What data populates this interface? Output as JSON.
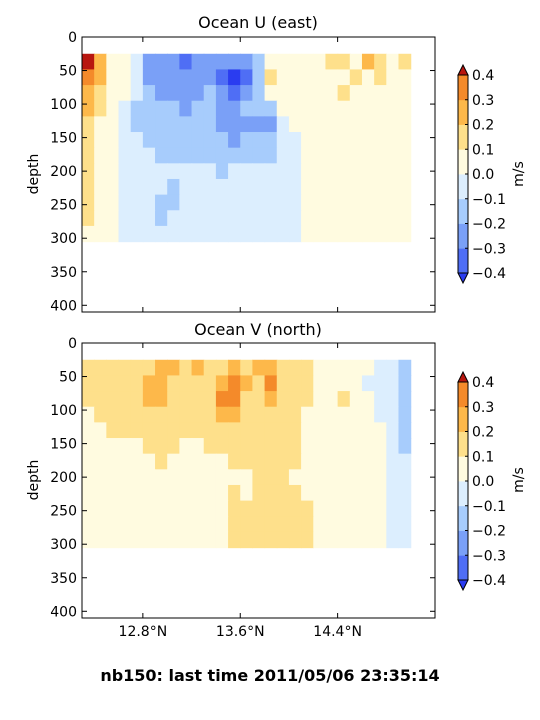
{
  "figure": {
    "suptitle": "nb150: last time 2011/05/06 23:35:14"
  },
  "chart_data": [
    {
      "type": "heatmap",
      "title": "Ocean U (east)",
      "ylabel": "depth",
      "xlabel": "",
      "yticks": [
        0,
        50,
        100,
        150,
        200,
        250,
        300,
        350,
        400
      ],
      "ylim": [
        410,
        0
      ],
      "y_inverted": true,
      "xlim": [
        12.3,
        15.2
      ],
      "xticks": [
        12.8,
        13.6,
        14.4
      ],
      "xtick_labels_visible": false,
      "data_depth_range": [
        25,
        305
      ],
      "colorbar": {
        "label": "m/s",
        "ticks": [
          "0.4",
          "0.3",
          "0.2",
          "0.1",
          "0.0",
          "−0.1",
          "−0.2",
          "−0.3",
          "−0.4"
        ],
        "levels": [
          -0.4,
          -0.3,
          -0.2,
          -0.1,
          0.0,
          0.1,
          0.2,
          0.3,
          0.4
        ],
        "extend": "both",
        "colors": [
          "#2a3cf0",
          "#4f6ef5",
          "#7aa0f7",
          "#a7ccfc",
          "#dceefe",
          "#fffbe0",
          "#fee08b",
          "#fdb84a",
          "#f48a2a",
          "#dd4a1a",
          "#b8160f"
        ]
      },
      "field": {
        "x": [
          12.3,
          12.4,
          12.5,
          12.6,
          12.7,
          12.8,
          12.9,
          13.0,
          13.1,
          13.2,
          13.3,
          13.4,
          13.5,
          13.6,
          13.7,
          13.8,
          13.9,
          14.0,
          14.1,
          14.2,
          14.3,
          14.4,
          14.5,
          14.6,
          14.7,
          14.8,
          14.9
        ],
        "depth": [
          25,
          50,
          75,
          100,
          125,
          150,
          175,
          200,
          225,
          250,
          275,
          300
        ],
        "values": [
          [
            0.4,
            0.25,
            0.05,
            0.02,
            -0.08,
            -0.3,
            -0.3,
            -0.25,
            -0.35,
            -0.3,
            -0.28,
            -0.3,
            -0.25,
            -0.3,
            -0.15,
            0.05,
            0.05,
            0.02,
            0.05,
            0.05,
            0.1,
            0.1,
            0.05,
            0.2,
            0.12,
            0.05,
            0.15
          ],
          [
            0.35,
            0.2,
            0.05,
            0.02,
            -0.1,
            -0.28,
            -0.25,
            -0.22,
            -0.3,
            -0.25,
            -0.22,
            -0.35,
            -0.42,
            -0.38,
            -0.15,
            0.15,
            0.05,
            0.02,
            0.05,
            0.05,
            0.05,
            0.05,
            0.1,
            0.05,
            0.1,
            0.05,
            0.05
          ],
          [
            0.25,
            0.15,
            0.05,
            0.02,
            -0.1,
            -0.2,
            -0.22,
            -0.22,
            -0.25,
            -0.22,
            -0.2,
            -0.3,
            -0.35,
            -0.3,
            -0.15,
            0.05,
            0.05,
            0.02,
            0.05,
            0.05,
            0.05,
            0.15,
            0.05,
            0.05,
            0.05,
            0.05,
            0.05
          ],
          [
            0.2,
            0.1,
            0.02,
            -0.05,
            -0.12,
            -0.18,
            -0.18,
            -0.18,
            -0.22,
            -0.18,
            -0.18,
            -0.22,
            -0.22,
            -0.2,
            -0.2,
            -0.15,
            0.02,
            0.05,
            0.02,
            0.05,
            0.05,
            0.05,
            0.05,
            0.05,
            0.05,
            0.05,
            0.05
          ],
          [
            0.15,
            0.05,
            0.02,
            -0.05,
            -0.12,
            -0.15,
            -0.15,
            -0.15,
            -0.18,
            -0.15,
            -0.15,
            -0.22,
            -0.25,
            -0.22,
            -0.22,
            -0.22,
            -0.05,
            0.02,
            0.02,
            0.05,
            0.05,
            0.05,
            0.05,
            0.05,
            0.05,
            0.05,
            0.05
          ],
          [
            0.12,
            0.05,
            0.02,
            -0.05,
            -0.1,
            -0.12,
            -0.12,
            -0.12,
            -0.15,
            -0.12,
            -0.15,
            -0.2,
            -0.22,
            -0.18,
            -0.18,
            -0.15,
            -0.05,
            -0.02,
            0.02,
            0.05,
            0.05,
            0.05,
            0.05,
            0.05,
            0.05,
            0.05,
            0.05
          ],
          [
            0.1,
            0.05,
            0.02,
            -0.05,
            -0.08,
            -0.1,
            -0.12,
            -0.12,
            -0.12,
            -0.12,
            -0.12,
            -0.15,
            -0.12,
            -0.12,
            -0.12,
            -0.12,
            -0.05,
            -0.02,
            0.02,
            0.05,
            0.05,
            0.05,
            0.05,
            0.05,
            0.05,
            0.05,
            0.05
          ],
          [
            0.1,
            0.05,
            0.02,
            -0.02,
            -0.05,
            -0.08,
            -0.1,
            -0.1,
            -0.1,
            -0.1,
            -0.1,
            -0.12,
            -0.1,
            -0.08,
            -0.08,
            -0.08,
            -0.05,
            -0.02,
            0.02,
            0.02,
            0.05,
            0.05,
            0.05,
            0.05,
            0.05,
            0.05,
            0.05
          ],
          [
            0.12,
            0.05,
            0.02,
            -0.02,
            -0.05,
            -0.05,
            -0.08,
            -0.12,
            -0.1,
            -0.08,
            -0.08,
            -0.08,
            -0.05,
            -0.05,
            -0.05,
            -0.05,
            -0.05,
            -0.02,
            0.02,
            0.02,
            0.05,
            0.05,
            0.05,
            0.05,
            0.05,
            0.05,
            0.05
          ],
          [
            0.1,
            0.05,
            0.02,
            -0.02,
            -0.02,
            -0.05,
            -0.12,
            -0.12,
            -0.05,
            -0.05,
            -0.05,
            -0.05,
            -0.05,
            -0.05,
            -0.05,
            -0.05,
            -0.02,
            -0.02,
            0.02,
            0.02,
            0.05,
            0.05,
            0.05,
            0.05,
            0.05,
            0.05,
            0.05
          ],
          [
            0.1,
            0.05,
            0.02,
            -0.02,
            -0.02,
            -0.05,
            -0.12,
            -0.05,
            -0.05,
            -0.05,
            -0.05,
            -0.05,
            -0.05,
            -0.05,
            -0.05,
            -0.05,
            -0.02,
            -0.02,
            0.02,
            0.02,
            0.02,
            0.05,
            0.05,
            0.05,
            0.05,
            0.05,
            0.05
          ],
          [
            0.05,
            0.05,
            0.02,
            -0.02,
            -0.02,
            -0.05,
            -0.05,
            -0.05,
            -0.05,
            -0.05,
            -0.05,
            -0.05,
            -0.05,
            -0.05,
            -0.05,
            -0.05,
            -0.02,
            -0.02,
            0.02,
            0.02,
            0.02,
            0.02,
            0.05,
            0.05,
            0.05,
            0.05,
            0.05
          ]
        ]
      }
    },
    {
      "type": "heatmap",
      "title": "Ocean V (north)",
      "ylabel": "depth",
      "xlabel": "",
      "yticks": [
        0,
        50,
        100,
        150,
        200,
        250,
        300,
        350,
        400
      ],
      "ylim": [
        410,
        0
      ],
      "y_inverted": true,
      "xlim": [
        12.3,
        15.2
      ],
      "xticks": [
        12.8,
        13.6,
        14.4
      ],
      "xtick_labels": [
        "12.8°N",
        "13.6°N",
        "14.4°N"
      ],
      "data_depth_range": [
        25,
        305
      ],
      "colorbar": {
        "label": "m/s",
        "ticks": [
          "0.4",
          "0.3",
          "0.2",
          "0.1",
          "0.0",
          "−0.1",
          "−0.2",
          "−0.3",
          "−0.4"
        ],
        "levels": [
          -0.4,
          -0.3,
          -0.2,
          -0.1,
          0.0,
          0.1,
          0.2,
          0.3,
          0.4
        ],
        "extend": "both",
        "colors": [
          "#2a3cf0",
          "#4f6ef5",
          "#7aa0f7",
          "#a7ccfc",
          "#dceefe",
          "#fffbe0",
          "#fee08b",
          "#fdb84a",
          "#f48a2a",
          "#dd4a1a",
          "#b8160f"
        ]
      },
      "field": {
        "x": [
          12.3,
          12.4,
          12.5,
          12.6,
          12.7,
          12.8,
          12.9,
          13.0,
          13.1,
          13.2,
          13.3,
          13.4,
          13.5,
          13.6,
          13.7,
          13.8,
          13.9,
          14.0,
          14.1,
          14.2,
          14.3,
          14.4,
          14.5,
          14.6,
          14.7,
          14.8,
          14.9
        ],
        "depth": [
          25,
          50,
          75,
          100,
          125,
          150,
          175,
          200,
          225,
          250,
          275,
          300
        ],
        "values": [
          [
            0.15,
            0.1,
            0.12,
            0.15,
            0.1,
            0.15,
            0.22,
            0.22,
            0.15,
            0.2,
            0.12,
            0.18,
            0.25,
            0.15,
            0.2,
            0.25,
            0.15,
            0.15,
            0.12,
            0.05,
            0.05,
            0.02,
            0.05,
            0.02,
            -0.05,
            -0.05,
            -0.15
          ],
          [
            0.12,
            0.15,
            0.15,
            0.15,
            0.12,
            0.22,
            0.25,
            0.18,
            0.12,
            0.15,
            0.12,
            0.25,
            0.32,
            0.2,
            0.15,
            0.32,
            0.18,
            0.12,
            0.1,
            0.05,
            0.02,
            0.05,
            0.02,
            -0.02,
            -0.05,
            -0.05,
            -0.15
          ],
          [
            0.1,
            0.12,
            0.15,
            0.15,
            0.12,
            0.25,
            0.22,
            0.15,
            0.12,
            0.15,
            0.12,
            0.3,
            0.32,
            0.18,
            0.15,
            0.25,
            0.15,
            0.12,
            0.1,
            0.05,
            0.05,
            0.12,
            0.05,
            0.02,
            -0.02,
            -0.05,
            -0.15
          ],
          [
            0.05,
            0.12,
            0.12,
            0.12,
            0.1,
            0.18,
            0.18,
            0.12,
            0.1,
            0.12,
            0.12,
            0.22,
            0.25,
            0.15,
            0.12,
            0.18,
            0.12,
            0.12,
            0.08,
            0.05,
            0.05,
            0.05,
            0.02,
            0.02,
            -0.02,
            -0.05,
            -0.12
          ],
          [
            0.05,
            0.08,
            0.1,
            0.1,
            0.1,
            0.15,
            0.12,
            0.12,
            0.1,
            0.1,
            0.12,
            0.15,
            0.15,
            0.12,
            0.12,
            0.12,
            0.12,
            0.12,
            0.08,
            0.05,
            0.05,
            0.05,
            0.02,
            0.02,
            0.02,
            -0.05,
            -0.12
          ],
          [
            0.05,
            0.05,
            0.08,
            0.08,
            0.05,
            0.12,
            0.12,
            0.1,
            0.08,
            0.08,
            0.1,
            0.12,
            0.12,
            0.12,
            0.12,
            0.12,
            0.12,
            0.12,
            0.08,
            0.05,
            0.05,
            0.05,
            0.02,
            0.02,
            0.02,
            -0.05,
            -0.12
          ],
          [
            0.05,
            0.05,
            0.05,
            0.05,
            0.05,
            0.08,
            0.1,
            0.08,
            0.05,
            0.05,
            0.08,
            0.08,
            0.1,
            0.12,
            0.12,
            0.12,
            0.15,
            0.12,
            0.08,
            0.05,
            0.05,
            0.05,
            0.02,
            0.02,
            0.02,
            -0.02,
            -0.1
          ],
          [
            0.05,
            0.05,
            0.05,
            0.05,
            0.05,
            0.05,
            0.08,
            0.05,
            0.05,
            0.05,
            0.05,
            0.05,
            0.08,
            0.08,
            0.12,
            0.15,
            0.12,
            0.08,
            0.05,
            0.05,
            0.05,
            0.05,
            0.02,
            0.02,
            0.02,
            -0.02,
            -0.05
          ],
          [
            0.05,
            0.05,
            0.05,
            0.05,
            0.05,
            0.05,
            0.05,
            0.05,
            0.05,
            0.05,
            0.05,
            0.05,
            0.12,
            0.08,
            0.12,
            0.15,
            0.12,
            0.12,
            0.05,
            0.05,
            0.05,
            0.05,
            0.02,
            0.02,
            0.02,
            -0.02,
            -0.05
          ],
          [
            0.05,
            0.05,
            0.05,
            0.05,
            0.05,
            0.05,
            0.05,
            0.05,
            0.05,
            0.05,
            0.05,
            0.05,
            0.12,
            0.12,
            0.15,
            0.15,
            0.15,
            0.15,
            0.12,
            0.05,
            0.05,
            0.02,
            0.05,
            0.02,
            0.02,
            -0.02,
            -0.05
          ],
          [
            0.05,
            0.05,
            0.05,
            0.05,
            0.05,
            0.05,
            0.05,
            0.05,
            0.05,
            0.05,
            0.05,
            0.05,
            0.12,
            0.15,
            0.15,
            0.15,
            0.15,
            0.15,
            0.12,
            0.05,
            0.02,
            0.02,
            0.02,
            0.02,
            0.02,
            -0.02,
            -0.05
          ],
          [
            0.02,
            0.05,
            0.05,
            0.05,
            0.05,
            0.05,
            0.05,
            0.05,
            0.05,
            0.05,
            0.05,
            0.05,
            0.12,
            0.15,
            0.15,
            0.15,
            0.15,
            0.15,
            0.12,
            0.05,
            0.02,
            0.02,
            0.02,
            0.02,
            0.02,
            -0.02,
            -0.05
          ]
        ]
      }
    }
  ]
}
